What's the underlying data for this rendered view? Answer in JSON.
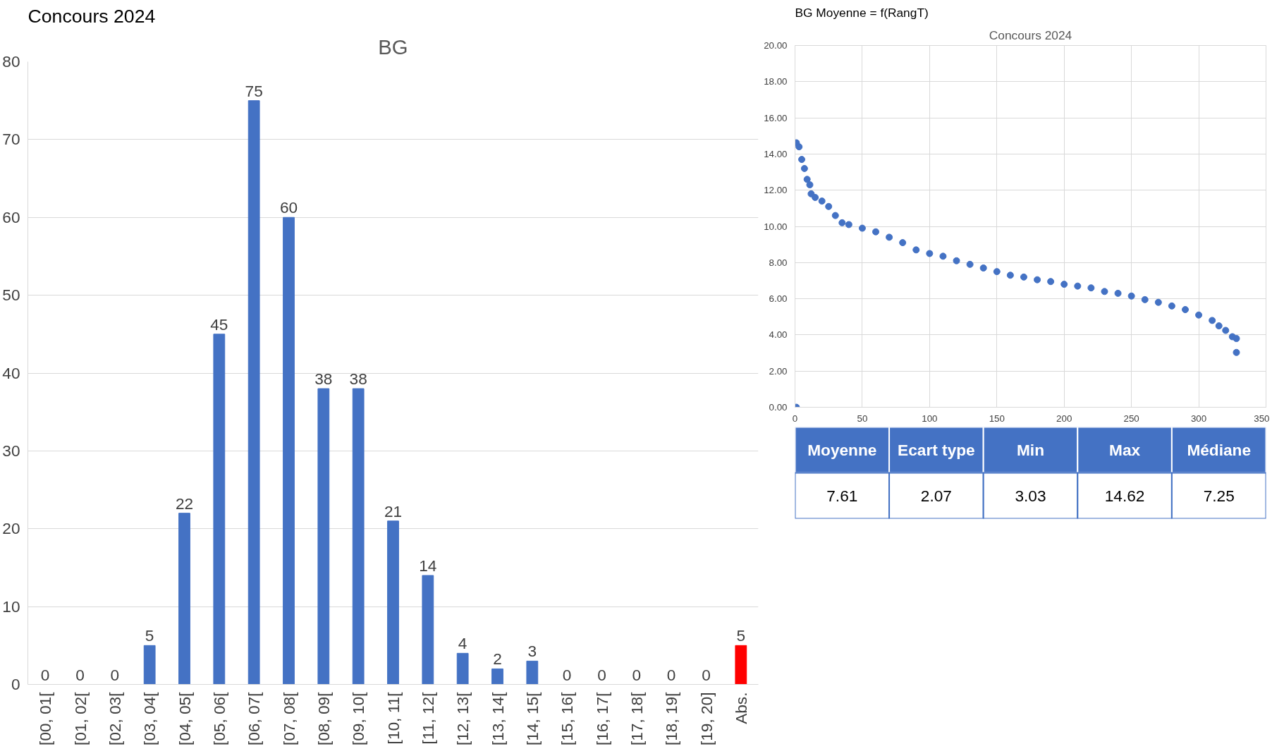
{
  "chart_data": [
    {
      "type": "bar",
      "title": "Concours 2024",
      "subtitle": "BG",
      "categories": [
        "[00, 01[",
        "[01, 02[",
        "[02, 03[",
        "[03, 04[",
        "[04, 05[",
        "[05, 06[",
        "[06, 07[",
        "[07, 08[",
        "[08, 09[",
        "[09, 10[",
        "[10, 11[",
        "[11, 12[",
        "[12, 13[",
        "[13, 14[",
        "[14, 15[",
        "[15, 16[",
        "[16, 17[",
        "[17, 18[",
        "[18, 19[",
        "[19, 20]",
        "Abs."
      ],
      "values": [
        0,
        0,
        0,
        5,
        22,
        45,
        75,
        60,
        38,
        38,
        21,
        14,
        4,
        2,
        3,
        0,
        0,
        0,
        0,
        0,
        5
      ],
      "colors": [
        "#4472c4",
        "#4472c4",
        "#4472c4",
        "#4472c4",
        "#4472c4",
        "#4472c4",
        "#4472c4",
        "#4472c4",
        "#4472c4",
        "#4472c4",
        "#4472c4",
        "#4472c4",
        "#4472c4",
        "#4472c4",
        "#4472c4",
        "#4472c4",
        "#4472c4",
        "#4472c4",
        "#4472c4",
        "#4472c4",
        "#ff0000"
      ],
      "ylim": [
        0,
        80
      ],
      "yticks": [
        0,
        10,
        20,
        30,
        40,
        50,
        60,
        70,
        80
      ],
      "grid": "y",
      "data_labels": true
    },
    {
      "type": "scatter",
      "title": "BG Moyenne = f(RangT)",
      "subtitle": "Concours 2024",
      "marker": "circle",
      "grid": true,
      "series": [
        {
          "color": "#4472c4",
          "x": [
            1,
            1,
            3,
            5,
            7,
            9,
            11,
            12,
            15,
            20,
            25,
            30,
            35,
            40,
            50,
            60,
            70,
            80,
            90,
            100,
            110,
            120,
            130,
            140,
            150,
            160,
            170,
            180,
            190,
            200,
            210,
            220,
            230,
            240,
            250,
            260,
            270,
            280,
            290,
            300,
            310,
            315,
            320,
            325,
            328,
            328
          ],
          "values": [
            0.0,
            14.62,
            14.4,
            13.7,
            13.2,
            12.6,
            12.3,
            11.8,
            11.6,
            11.4,
            11.1,
            10.6,
            10.2,
            10.1,
            9.9,
            9.7,
            9.4,
            9.1,
            8.7,
            8.5,
            8.35,
            8.1,
            7.9,
            7.7,
            7.5,
            7.3,
            7.2,
            7.05,
            6.95,
            6.8,
            6.7,
            6.6,
            6.4,
            6.3,
            6.15,
            5.95,
            5.8,
            5.6,
            5.4,
            5.1,
            4.8,
            4.5,
            4.25,
            3.9,
            3.8,
            3.03
          ]
        }
      ],
      "xlim": [
        0,
        350
      ],
      "xticks": [
        0,
        50,
        100,
        150,
        200,
        250,
        300,
        350
      ],
      "ylim": [
        0,
        20
      ],
      "yticks": [
        {
          "value": 0,
          "label": "0.00"
        },
        {
          "value": 2,
          "label": "2.00"
        },
        {
          "value": 4,
          "label": "4.00"
        },
        {
          "value": 6,
          "label": "6.00"
        },
        {
          "value": 8,
          "label": "8.00"
        },
        {
          "value": 10,
          "label": "10.00"
        },
        {
          "value": 12,
          "label": "12.00"
        },
        {
          "value": 14,
          "label": "14.00"
        },
        {
          "value": 16,
          "label": "16.00"
        },
        {
          "value": 18,
          "label": "18.00"
        },
        {
          "value": 20,
          "label": "20.00"
        }
      ]
    },
    {
      "type": "other",
      "categories": [
        "Moyenne",
        "Ecart type",
        "Min",
        "Max",
        "Médiane"
      ],
      "value_labels": [
        "7.61",
        "2.07",
        "3.03",
        "14.62",
        "7.25"
      ],
      "color": "#4472c4"
    }
  ]
}
